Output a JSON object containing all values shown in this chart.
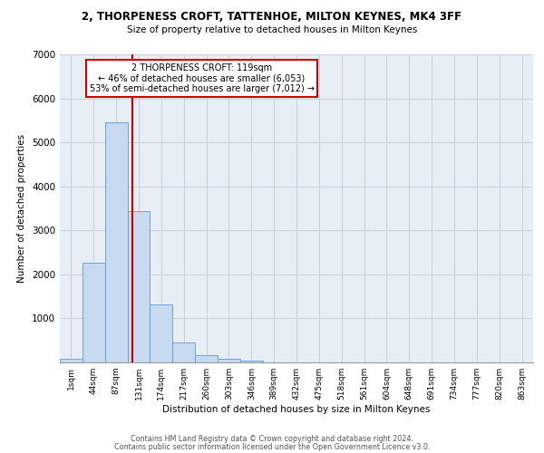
{
  "title_line1": "2, THORPENESS CROFT, TATTENHOE, MILTON KEYNES, MK4 3FF",
  "title_line2": "Size of property relative to detached houses in Milton Keynes",
  "xlabel": "Distribution of detached houses by size in Milton Keynes",
  "ylabel": "Number of detached properties",
  "footer_line1": "Contains HM Land Registry data © Crown copyright and database right 2024.",
  "footer_line2": "Contains public sector information licensed under the Open Government Licence v3.0.",
  "categories": [
    "1sqm",
    "44sqm",
    "87sqm",
    "131sqm",
    "174sqm",
    "217sqm",
    "260sqm",
    "303sqm",
    "346sqm",
    "389sqm",
    "432sqm",
    "475sqm",
    "518sqm",
    "561sqm",
    "604sqm",
    "648sqm",
    "691sqm",
    "734sqm",
    "777sqm",
    "820sqm",
    "863sqm"
  ],
  "bar_values": [
    80,
    2270,
    5460,
    3440,
    1310,
    460,
    155,
    80,
    45,
    0,
    0,
    0,
    0,
    0,
    0,
    0,
    0,
    0,
    0,
    0,
    0
  ],
  "bar_color": "#c8daf0",
  "bar_edge_color": "#5b9bd5",
  "grid_color": "#c8d0dc",
  "background_color": "#e8eef5",
  "vline_color": "#cc0000",
  "annotation_text": "2 THORPENESS CROFT: 119sqm\n← 46% of detached houses are smaller (6,053)\n53% of semi-detached houses are larger (7,012) →",
  "annotation_box_color": "#ffffff",
  "annotation_box_edge_color": "#cc0000",
  "ylim": [
    0,
    7000
  ],
  "yticks": [
    0,
    1000,
    2000,
    3000,
    4000,
    5000,
    6000,
    7000
  ]
}
